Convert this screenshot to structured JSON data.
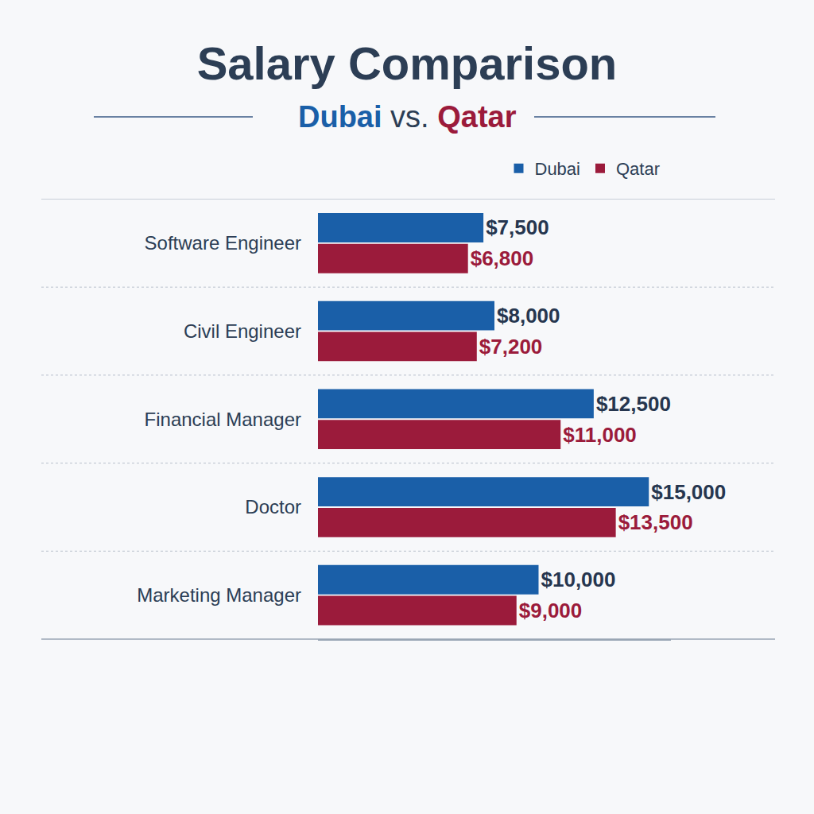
{
  "chart_data": {
    "type": "bar",
    "orientation": "horizontal",
    "title": "Salary Comparison",
    "subtitle": "Dubai vs. Qatar",
    "categories": [
      "Software Engineer",
      "Civil Engineer",
      "Financial Manager",
      "Doctor",
      "Marketing Manager"
    ],
    "series": [
      {
        "name": "Dubai",
        "color": "#1a5fa8",
        "values": [
          7500,
          8000,
          12500,
          15000,
          10000
        ],
        "value_labels": [
          "$7,500",
          "$8,000",
          "$12,500",
          "$15,000",
          "$10,000"
        ]
      },
      {
        "name": "Qatar",
        "color": "#9b1b3b",
        "values": [
          6800,
          7200,
          11000,
          13500,
          9000
        ],
        "value_labels": [
          "$6,800",
          "$7,200",
          "$11,000",
          "$13,500",
          "$9,000"
        ]
      }
    ],
    "xlim": [
      0,
      16000
    ],
    "data_labels": true,
    "tick_labels": "y",
    "grid": false,
    "legend": "top"
  }
}
